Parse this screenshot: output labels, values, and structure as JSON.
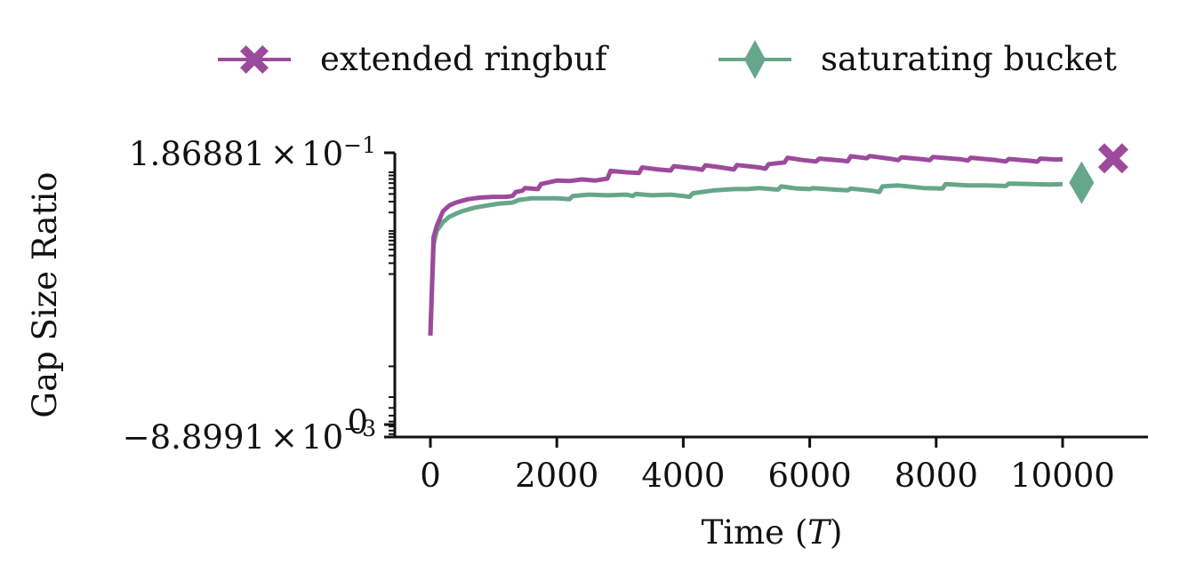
{
  "chart_data": {
    "type": "line",
    "title": "",
    "xlabel": "Time (T)",
    "xlabel_parts": {
      "prefix": "Time (",
      "var": "T",
      "suffix": ")"
    },
    "ylabel": "Gap Size Ratio",
    "y_scale": "symlog",
    "xlim": [
      -500,
      11300
    ],
    "ylim": [
      -0.0088991,
      0.186881
    ],
    "x_ticks": [
      0,
      2000,
      4000,
      6000,
      8000,
      10000
    ],
    "y_tick_labels": {
      "top": {
        "mantissa": "1.86881",
        "base": "10",
        "exponent": "−1"
      },
      "bottom": {
        "mantissa": "−8.8991",
        "base": "10",
        "exponent": "−3"
      },
      "zero": "0"
    },
    "grid": false,
    "legend": {
      "placement": "top-center",
      "columns": 2
    },
    "series": [
      {
        "name": "extended ringbuf",
        "color": "#9c4a9b",
        "marker": "x-filled",
        "end_marker_x": 10800,
        "end_marker_y": 0.152,
        "points": [
          [
            0,
            0
          ],
          [
            50,
            0.008
          ],
          [
            100,
            0.012
          ],
          [
            150,
            0.016
          ],
          [
            200,
            0.021
          ],
          [
            300,
            0.026
          ],
          [
            400,
            0.029
          ],
          [
            500,
            0.031
          ],
          [
            600,
            0.033
          ],
          [
            800,
            0.035
          ],
          [
            1000,
            0.036
          ],
          [
            1200,
            0.036
          ],
          [
            1300,
            0.037
          ],
          [
            1350,
            0.043
          ],
          [
            1450,
            0.045
          ],
          [
            1500,
            0.05
          ],
          [
            1700,
            0.048
          ],
          [
            1750,
            0.058
          ],
          [
            2000,
            0.066
          ],
          [
            2200,
            0.065
          ],
          [
            2400,
            0.069
          ],
          [
            2600,
            0.066
          ],
          [
            2800,
            0.071
          ],
          [
            2850,
            0.095
          ],
          [
            3100,
            0.09
          ],
          [
            3300,
            0.088
          ],
          [
            3350,
            0.108
          ],
          [
            3600,
            0.1
          ],
          [
            3800,
            0.096
          ],
          [
            3850,
            0.113
          ],
          [
            4200,
            0.103
          ],
          [
            4300,
            0.099
          ],
          [
            4350,
            0.117
          ],
          [
            4600,
            0.108
          ],
          [
            4800,
            0.1
          ],
          [
            4850,
            0.118
          ],
          [
            5200,
            0.108
          ],
          [
            5300,
            0.103
          ],
          [
            5350,
            0.122
          ],
          [
            5600,
            0.13
          ],
          [
            5650,
            0.155
          ],
          [
            5900,
            0.142
          ],
          [
            6100,
            0.135
          ],
          [
            6150,
            0.15
          ],
          [
            6500,
            0.14
          ],
          [
            6600,
            0.136
          ],
          [
            6650,
            0.164
          ],
          [
            6900,
            0.152
          ],
          [
            6950,
            0.165
          ],
          [
            7300,
            0.148
          ],
          [
            7400,
            0.142
          ],
          [
            7450,
            0.158
          ],
          [
            7800,
            0.146
          ],
          [
            7900,
            0.142
          ],
          [
            7950,
            0.16
          ],
          [
            8400,
            0.146
          ],
          [
            8500,
            0.14
          ],
          [
            8550,
            0.155
          ],
          [
            8950,
            0.142
          ],
          [
            9100,
            0.135
          ],
          [
            9150,
            0.148
          ],
          [
            9500,
            0.138
          ],
          [
            9600,
            0.134
          ],
          [
            9650,
            0.15
          ],
          [
            9900,
            0.145
          ],
          [
            10000,
            0.147
          ]
        ]
      },
      {
        "name": "saturating bucket",
        "color": "#66a68a",
        "marker": "thin-diamond",
        "end_marker_x": 10300,
        "end_marker_y": 0.061,
        "points": [
          [
            0,
            0
          ],
          [
            50,
            0.006
          ],
          [
            100,
            0.01
          ],
          [
            200,
            0.014
          ],
          [
            300,
            0.017
          ],
          [
            400,
            0.019
          ],
          [
            500,
            0.021
          ],
          [
            700,
            0.024
          ],
          [
            900,
            0.026
          ],
          [
            1100,
            0.028
          ],
          [
            1300,
            0.029
          ],
          [
            1400,
            0.032
          ],
          [
            1600,
            0.034
          ],
          [
            1800,
            0.034
          ],
          [
            2000,
            0.034
          ],
          [
            2200,
            0.033
          ],
          [
            2250,
            0.037
          ],
          [
            2500,
            0.039
          ],
          [
            2800,
            0.038
          ],
          [
            3100,
            0.039
          ],
          [
            3200,
            0.037
          ],
          [
            3250,
            0.04
          ],
          [
            3500,
            0.038
          ],
          [
            3800,
            0.039
          ],
          [
            4000,
            0.037
          ],
          [
            4100,
            0.036
          ],
          [
            4150,
            0.041
          ],
          [
            4500,
            0.046
          ],
          [
            4800,
            0.048
          ],
          [
            5000,
            0.048
          ],
          [
            5200,
            0.05
          ],
          [
            5500,
            0.047
          ],
          [
            5550,
            0.053
          ],
          [
            5800,
            0.049
          ],
          [
            6000,
            0.048
          ],
          [
            6050,
            0.05
          ],
          [
            6400,
            0.047
          ],
          [
            6600,
            0.046
          ],
          [
            6650,
            0.049
          ],
          [
            7000,
            0.045
          ],
          [
            7100,
            0.043
          ],
          [
            7150,
            0.053
          ],
          [
            7400,
            0.055
          ],
          [
            7800,
            0.05
          ],
          [
            8100,
            0.049
          ],
          [
            8150,
            0.058
          ],
          [
            8500,
            0.055
          ],
          [
            8800,
            0.055
          ],
          [
            9100,
            0.054
          ],
          [
            9150,
            0.059
          ],
          [
            9500,
            0.058
          ],
          [
            9800,
            0.057
          ],
          [
            10000,
            0.058
          ]
        ]
      }
    ]
  }
}
